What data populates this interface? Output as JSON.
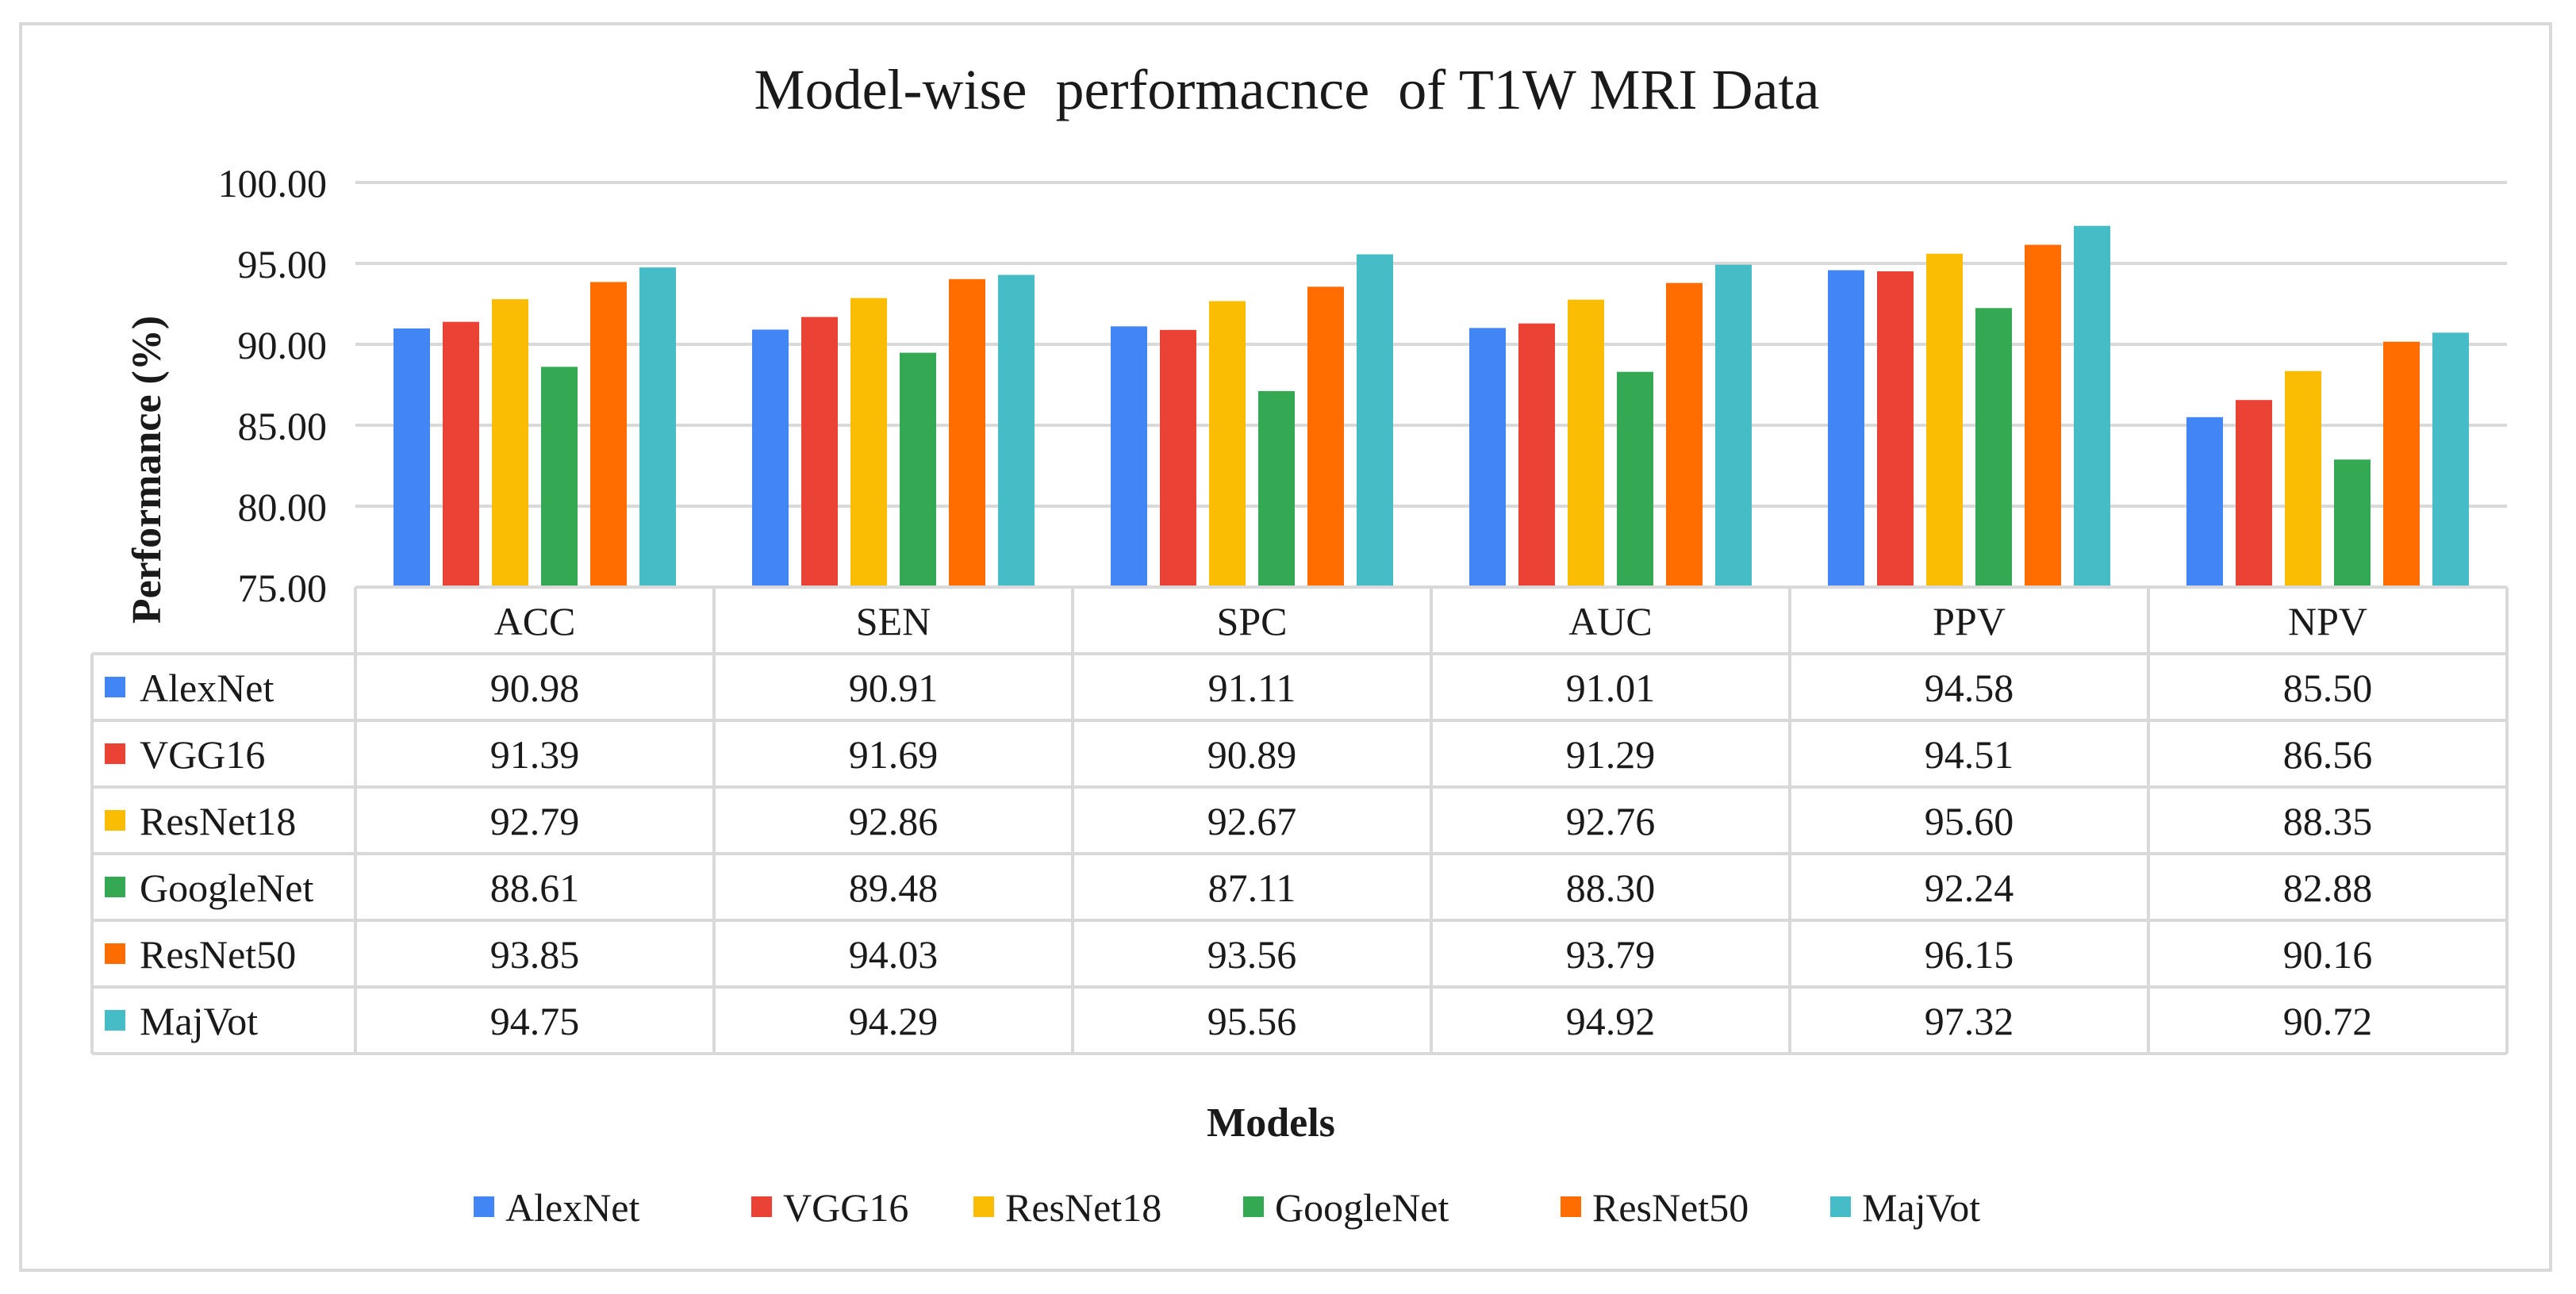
{
  "chart_data": {
    "type": "bar",
    "title": "Model-wise  performacnce  of T1W MRI Data",
    "xlabel": "Models",
    "ylabel": "Performance (%)",
    "ylim": [
      75,
      100
    ],
    "yticks": [
      "75.00",
      "80.00",
      "85.00",
      "90.00",
      "95.00",
      "100.00"
    ],
    "grid": true,
    "legend_position": "bottom",
    "categories": [
      "ACC",
      "SEN",
      "SPC",
      "AUC",
      "PPV",
      "NPV"
    ],
    "series": [
      {
        "name": "AlexNet",
        "color": "#4285f4",
        "values": [
          90.98,
          90.91,
          91.11,
          91.01,
          94.58,
          85.5
        ],
        "labels": [
          "90.98",
          "90.91",
          "91.11",
          "91.01",
          "94.58",
          "85.50"
        ]
      },
      {
        "name": "VGG16",
        "color": "#ea4335",
        "values": [
          91.39,
          91.69,
          90.89,
          91.29,
          94.51,
          86.56
        ],
        "labels": [
          "91.39",
          "91.69",
          "90.89",
          "91.29",
          "94.51",
          "86.56"
        ]
      },
      {
        "name": "ResNet18",
        "color": "#fbbc04",
        "values": [
          92.79,
          92.86,
          92.67,
          92.76,
          95.6,
          88.35
        ],
        "labels": [
          "92.79",
          "92.86",
          "92.67",
          "92.76",
          "95.60",
          "88.35"
        ]
      },
      {
        "name": "GoogleNet",
        "color": "#34a853",
        "values": [
          88.61,
          89.48,
          87.11,
          88.3,
          92.24,
          82.88
        ],
        "labels": [
          "88.61",
          "89.48",
          "87.11",
          "88.30",
          "92.24",
          "82.88"
        ]
      },
      {
        "name": "ResNet50",
        "color": "#ff6d01",
        "values": [
          93.85,
          94.03,
          93.56,
          93.79,
          96.15,
          90.16
        ],
        "labels": [
          "93.85",
          "94.03",
          "93.56",
          "93.79",
          "96.15",
          "90.16"
        ]
      },
      {
        "name": "MajVot",
        "color": "#46bdc6",
        "values": [
          94.75,
          94.29,
          95.56,
          94.92,
          97.32,
          90.72
        ],
        "labels": [
          "94.75",
          "94.29",
          "95.56",
          "94.92",
          "97.32",
          "90.72"
        ]
      }
    ]
  }
}
